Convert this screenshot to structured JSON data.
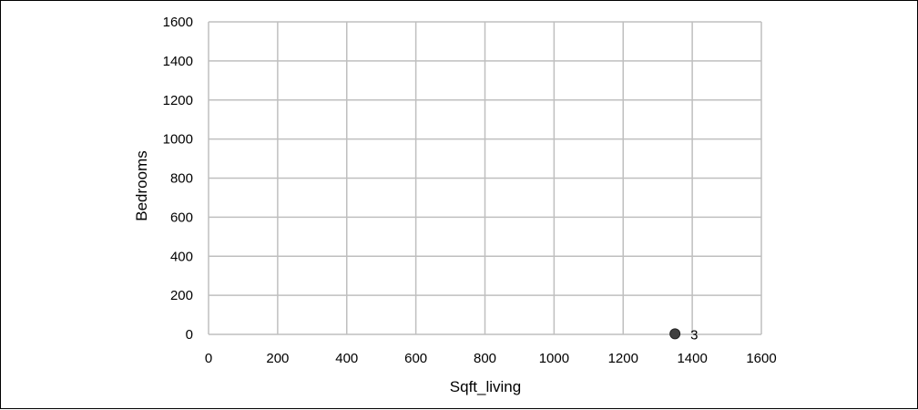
{
  "chart_data": {
    "type": "scatter",
    "title": "",
    "xlabel": "Sqft_living",
    "ylabel": "Bedrooms",
    "xlim": [
      0,
      1600
    ],
    "ylim": [
      0,
      1600
    ],
    "x_ticks": [
      0,
      200,
      400,
      600,
      800,
      1000,
      1200,
      1400,
      1600
    ],
    "y_ticks": [
      0,
      200,
      400,
      600,
      800,
      1000,
      1200,
      1400,
      1600
    ],
    "grid": true,
    "points": [
      {
        "x": 1350,
        "y": 3,
        "label": "3"
      }
    ],
    "colors": {
      "grid": "#bfbfbf",
      "marker": "#404040",
      "axis": "#000000"
    }
  }
}
